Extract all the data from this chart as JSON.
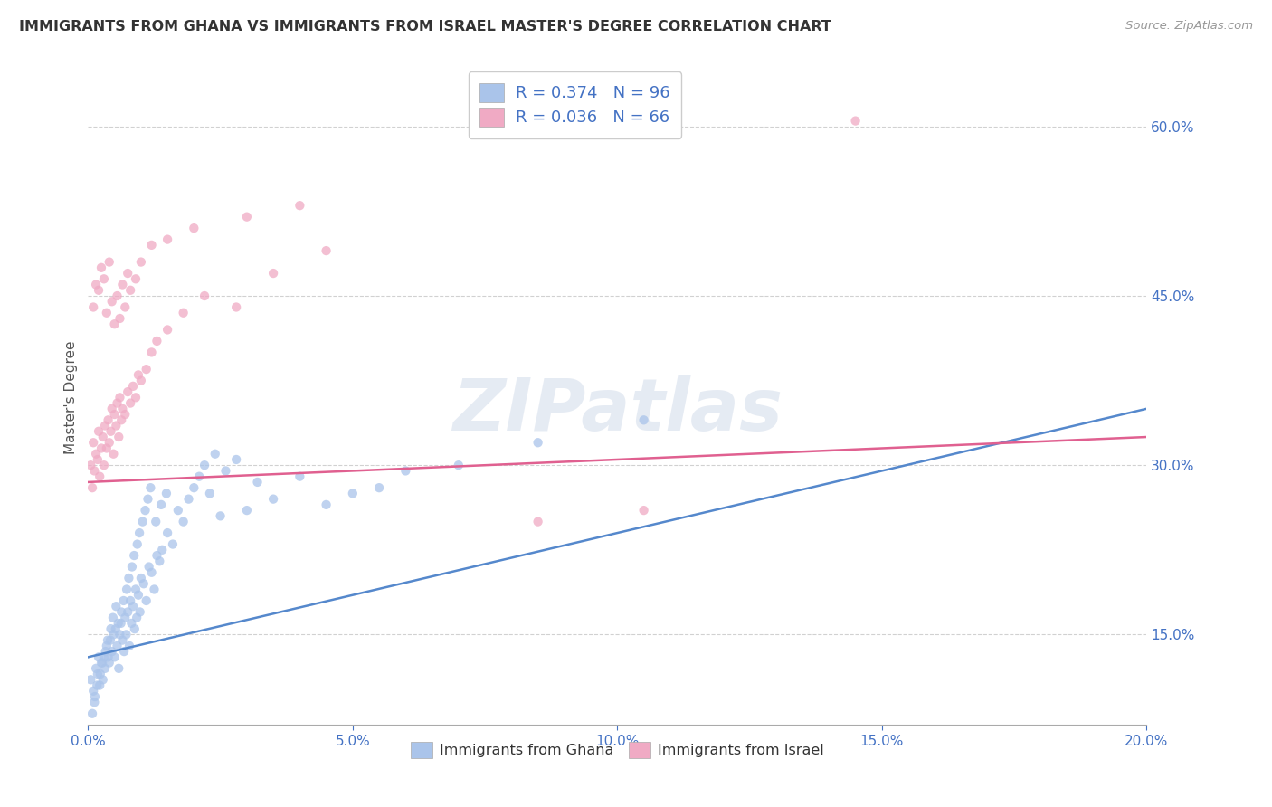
{
  "title": "IMMIGRANTS FROM GHANA VS IMMIGRANTS FROM ISRAEL MASTER'S DEGREE CORRELATION CHART",
  "source": "Source: ZipAtlas.com",
  "ylabel": "Master's Degree",
  "legend_label1": "Immigrants from Ghana",
  "legend_label2": "Immigrants from Israel",
  "legend_R1": "R = 0.374",
  "legend_N1": "N = 96",
  "legend_R2": "R = 0.036",
  "legend_N2": "N = 66",
  "color_ghana": "#aac4ea",
  "color_israel": "#f0aac4",
  "color_ghana_line": "#5588cc",
  "color_israel_line": "#e06090",
  "color_tick_blue": "#4472c4",
  "watermark": "ZIPatlas",
  "xmin": 0.0,
  "xmax": 20.0,
  "ymin": 7.0,
  "ymax": 65.0,
  "ytick_vals": [
    15.0,
    30.0,
    45.0,
    60.0
  ],
  "xtick_vals": [
    0.0,
    5.0,
    10.0,
    15.0,
    20.0
  ],
  "ghana_line_x": [
    0.0,
    20.0
  ],
  "ghana_line_y": [
    13.0,
    35.0
  ],
  "israel_line_x": [
    0.0,
    20.0
  ],
  "israel_line_y": [
    28.5,
    32.5
  ],
  "ghana_x": [
    0.05,
    0.1,
    0.12,
    0.15,
    0.18,
    0.2,
    0.22,
    0.25,
    0.28,
    0.3,
    0.32,
    0.35,
    0.38,
    0.4,
    0.42,
    0.45,
    0.48,
    0.5,
    0.52,
    0.55,
    0.58,
    0.6,
    0.62,
    0.65,
    0.68,
    0.7,
    0.72,
    0.75,
    0.78,
    0.8,
    0.82,
    0.85,
    0.88,
    0.9,
    0.92,
    0.95,
    0.98,
    1.0,
    1.05,
    1.1,
    1.15,
    1.2,
    1.25,
    1.3,
    1.35,
    1.4,
    1.5,
    1.6,
    1.7,
    1.8,
    1.9,
    2.0,
    2.1,
    2.2,
    2.3,
    2.4,
    2.5,
    2.6,
    2.8,
    3.0,
    3.2,
    3.5,
    4.0,
    4.5,
    5.0,
    5.5,
    6.0,
    7.0,
    8.5,
    10.5,
    0.08,
    0.13,
    0.17,
    0.23,
    0.27,
    0.33,
    0.37,
    0.43,
    0.47,
    0.53,
    0.57,
    0.63,
    0.67,
    0.73,
    0.77,
    0.83,
    0.87,
    0.93,
    0.97,
    1.03,
    1.08,
    1.13,
    1.18,
    1.28,
    1.38,
    1.48
  ],
  "ghana_y": [
    11.0,
    10.0,
    9.0,
    12.0,
    11.5,
    13.0,
    10.5,
    12.5,
    11.0,
    13.0,
    12.0,
    14.0,
    13.0,
    12.5,
    14.5,
    13.5,
    15.0,
    13.0,
    15.5,
    14.0,
    12.0,
    15.0,
    16.0,
    14.5,
    13.5,
    16.5,
    15.0,
    17.0,
    14.0,
    18.0,
    16.0,
    17.5,
    15.5,
    19.0,
    16.5,
    18.5,
    17.0,
    20.0,
    19.5,
    18.0,
    21.0,
    20.5,
    19.0,
    22.0,
    21.5,
    22.5,
    24.0,
    23.0,
    26.0,
    25.0,
    27.0,
    28.0,
    29.0,
    30.0,
    27.5,
    31.0,
    25.5,
    29.5,
    30.5,
    26.0,
    28.5,
    27.0,
    29.0,
    26.5,
    27.5,
    28.0,
    29.5,
    30.0,
    32.0,
    34.0,
    8.0,
    9.5,
    10.5,
    11.5,
    12.5,
    13.5,
    14.5,
    15.5,
    16.5,
    17.5,
    16.0,
    17.0,
    18.0,
    19.0,
    20.0,
    21.0,
    22.0,
    23.0,
    24.0,
    25.0,
    26.0,
    27.0,
    28.0,
    25.0,
    26.5,
    27.5
  ],
  "israel_x": [
    0.05,
    0.08,
    0.1,
    0.12,
    0.15,
    0.18,
    0.2,
    0.22,
    0.25,
    0.28,
    0.3,
    0.32,
    0.35,
    0.38,
    0.4,
    0.43,
    0.45,
    0.48,
    0.5,
    0.53,
    0.55,
    0.58,
    0.6,
    0.63,
    0.65,
    0.7,
    0.75,
    0.8,
    0.85,
    0.9,
    0.95,
    1.0,
    1.1,
    1.2,
    1.3,
    1.5,
    1.8,
    2.2,
    2.8,
    3.5,
    4.5,
    0.1,
    0.15,
    0.2,
    0.25,
    0.3,
    0.35,
    0.4,
    0.45,
    0.5,
    0.55,
    0.6,
    0.65,
    0.7,
    0.75,
    0.8,
    0.9,
    1.0,
    1.2,
    1.5,
    2.0,
    3.0,
    4.0,
    8.5,
    10.5,
    14.5
  ],
  "israel_y": [
    30.0,
    28.0,
    32.0,
    29.5,
    31.0,
    30.5,
    33.0,
    29.0,
    31.5,
    32.5,
    30.0,
    33.5,
    31.5,
    34.0,
    32.0,
    33.0,
    35.0,
    31.0,
    34.5,
    33.5,
    35.5,
    32.5,
    36.0,
    34.0,
    35.0,
    34.5,
    36.5,
    35.5,
    37.0,
    36.0,
    38.0,
    37.5,
    38.5,
    40.0,
    41.0,
    42.0,
    43.5,
    45.0,
    44.0,
    47.0,
    49.0,
    44.0,
    46.0,
    45.5,
    47.5,
    46.5,
    43.5,
    48.0,
    44.5,
    42.5,
    45.0,
    43.0,
    46.0,
    44.0,
    47.0,
    45.5,
    46.5,
    48.0,
    49.5,
    50.0,
    51.0,
    52.0,
    53.0,
    25.0,
    26.0,
    60.5
  ]
}
